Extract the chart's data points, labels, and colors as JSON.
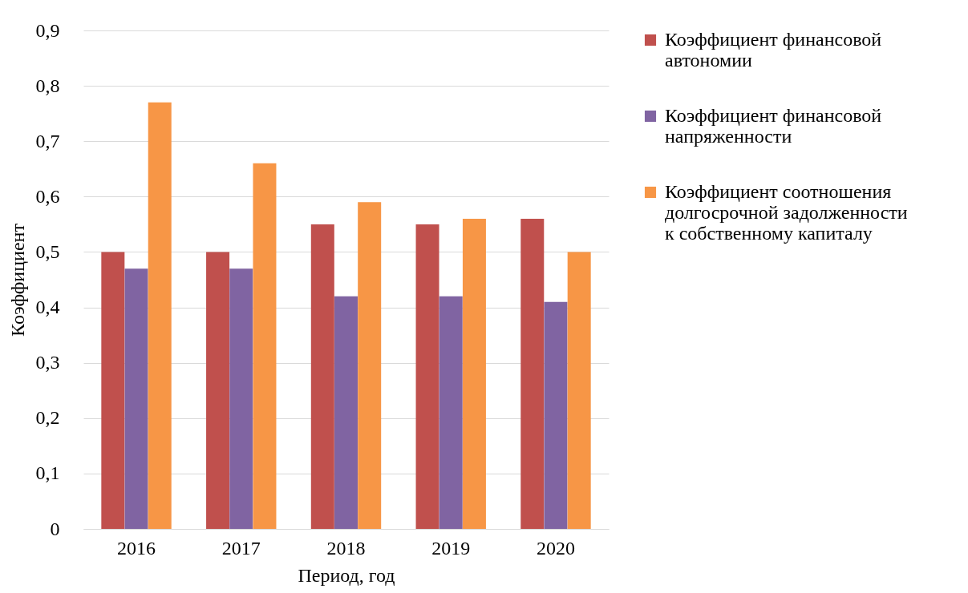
{
  "chart_data": {
    "type": "bar",
    "xlabel": "Период, год",
    "ylabel": "Коэффициент",
    "categories": [
      "2016",
      "2017",
      "2018",
      "2019",
      "2020"
    ],
    "series": [
      {
        "name": "Коэффициент финансовой автономии",
        "color": "#c0504d",
        "values": [
          0.5,
          0.5,
          0.55,
          0.55,
          0.56
        ]
      },
      {
        "name": "Коэффициент финансовой напряженности",
        "color": "#8064a2",
        "values": [
          0.47,
          0.47,
          0.42,
          0.42,
          0.41
        ]
      },
      {
        "name": "Коэффициент соотношения долгосрочной задолженности к собственному капиталу",
        "color": "#f79646",
        "values": [
          0.77,
          0.66,
          0.59,
          0.56,
          0.5
        ]
      }
    ],
    "ylim": [
      0,
      0.9
    ],
    "yticks": [
      {
        "value": 0,
        "label": "0"
      },
      {
        "value": 0.1,
        "label": "0,1"
      },
      {
        "value": 0.2,
        "label": "0,2"
      },
      {
        "value": 0.3,
        "label": "0,3"
      },
      {
        "value": 0.4,
        "label": "0,4"
      },
      {
        "value": 0.5,
        "label": "0,5"
      },
      {
        "value": 0.6,
        "label": "0,6"
      },
      {
        "value": 0.7,
        "label": "0,7"
      },
      {
        "value": 0.8,
        "label": "0,8"
      },
      {
        "value": 0.9,
        "label": "0,9"
      }
    ],
    "grid": "y",
    "legend": "right"
  }
}
